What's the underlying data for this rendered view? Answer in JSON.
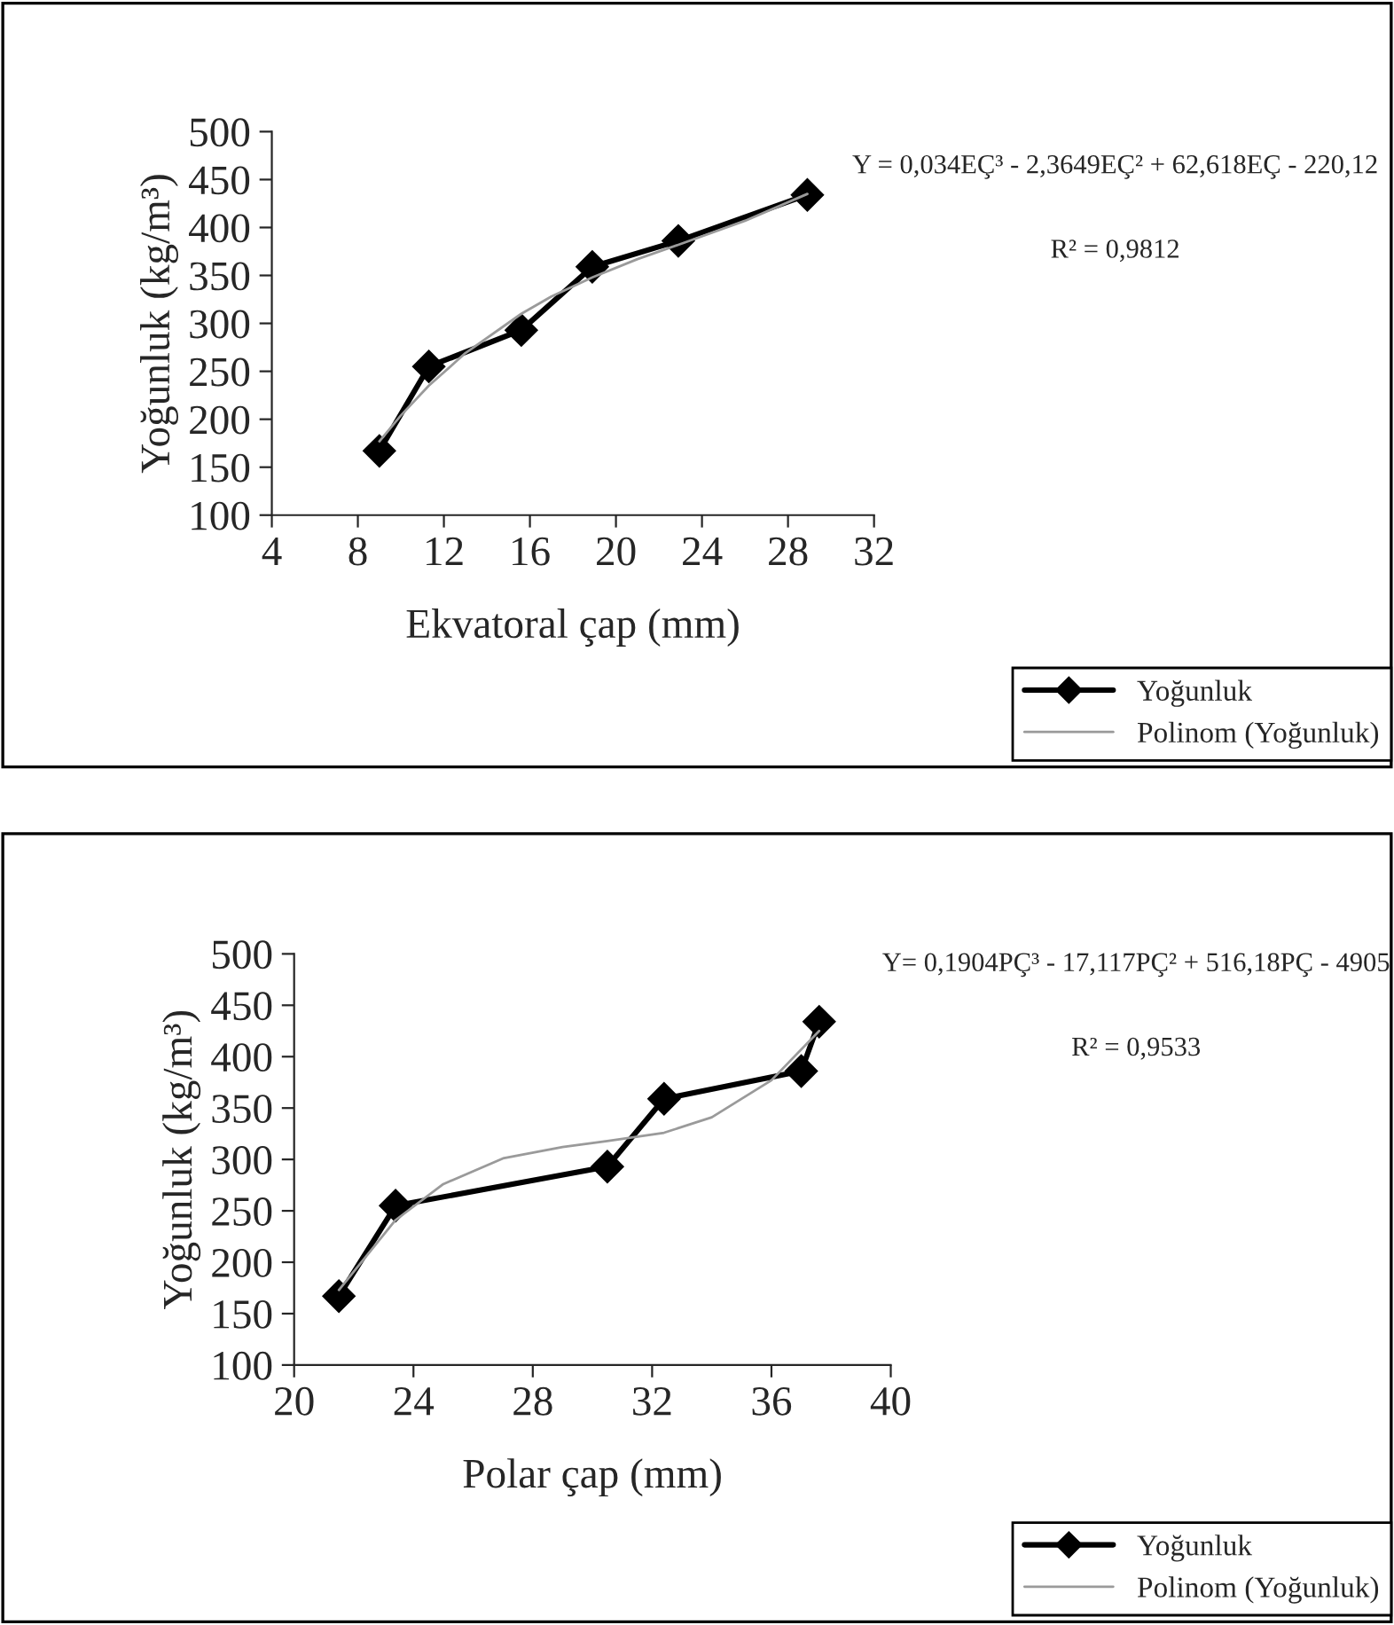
{
  "chart_data": [
    {
      "type": "line",
      "xlabel": "Ekvatoral çap (mm)",
      "ylabel": "Yoğunluk (kg/m³)",
      "xlim": [
        4,
        32
      ],
      "xticks": [
        4,
        8,
        12,
        16,
        20,
        24,
        28,
        32
      ],
      "ylim": [
        100,
        500
      ],
      "yticks": [
        100,
        150,
        200,
        250,
        300,
        350,
        400,
        450,
        500
      ],
      "grid": false,
      "legend": "bottom right",
      "annotations": [
        "Y = 0,034EÇ³ - 2,3649EÇ² + 62,618EÇ - 220,12",
        "R² = 0,9812"
      ],
      "series": [
        {
          "name": "Yoğunluk",
          "color": "#000000",
          "marker": "diamond",
          "line_style": "solid",
          "x": [
            9.0,
            11.3,
            15.6,
            18.9,
            22.9,
            28.9
          ],
          "values": [
            167,
            255,
            293,
            359,
            386,
            434
          ]
        },
        {
          "name": "Polinom (Yoğunluk)",
          "color": "#9a9a9a",
          "marker": "none",
          "line_style": "solid",
          "x": [
            9.0,
            10.0,
            11.3,
            13.0,
            15.6,
            17.0,
            18.9,
            21.0,
            22.9,
            26.0,
            28.9
          ],
          "values": [
            177,
            204,
            235,
            269,
            310,
            328,
            348,
            367,
            382,
            407,
            435
          ]
        }
      ]
    },
    {
      "type": "line",
      "xlabel": "Polar çap (mm)",
      "ylabel": "Yoğunluk (kg/m³)",
      "xlim": [
        20,
        40
      ],
      "xticks": [
        20,
        24,
        28,
        32,
        36,
        40
      ],
      "ylim": [
        100,
        500
      ],
      "yticks": [
        100,
        150,
        200,
        250,
        300,
        350,
        400,
        450,
        500
      ],
      "grid": false,
      "legend": "bottom right",
      "annotations": [
        "Y= 0,1904PÇ³ - 17,117PÇ² + 516,18PÇ - 4905",
        "R² = 0,9533"
      ],
      "series": [
        {
          "name": "Yoğunluk",
          "color": "#000000",
          "marker": "diamond",
          "line_style": "solid",
          "x": [
            21.5,
            23.4,
            30.5,
            32.4,
            37.0,
            37.6
          ],
          "values": [
            167,
            255,
            293,
            359,
            386,
            434
          ]
        },
        {
          "name": "Polinom (Yoğunluk)",
          "color": "#9a9a9a",
          "marker": "none",
          "line_style": "solid",
          "x": [
            21.5,
            23.4,
            25.0,
            27.0,
            29.0,
            30.5,
            32.4,
            34.0,
            36.0,
            37.6
          ],
          "values": [
            173,
            241,
            276,
            301,
            312,
            318,
            326,
            341,
            377,
            425
          ]
        }
      ]
    }
  ]
}
